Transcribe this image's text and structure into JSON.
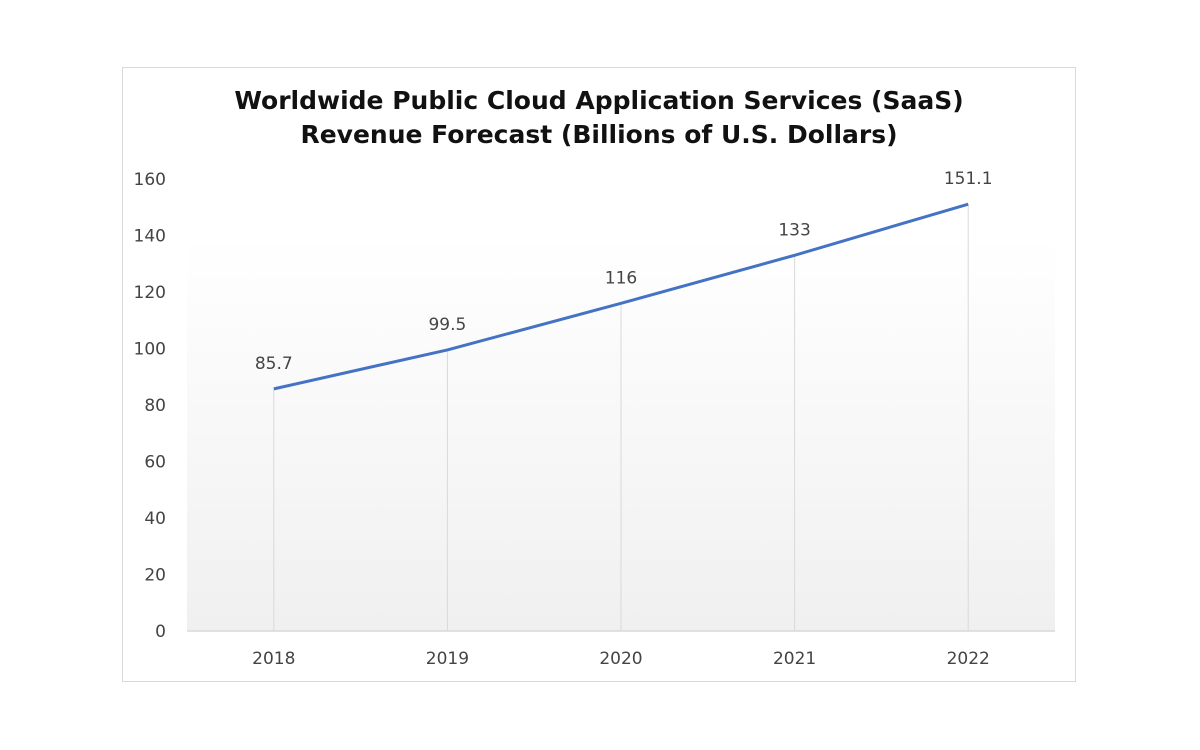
{
  "chart_data": {
    "type": "line",
    "title_lines": [
      "Worldwide Public Cloud Application Services (SaaS)",
      "Revenue Forecast (Billions of U.S. Dollars)"
    ],
    "categories": [
      "2018",
      "2019",
      "2020",
      "2021",
      "2022"
    ],
    "values": [
      85.7,
      99.5,
      116,
      133,
      151.1
    ],
    "data_labels": [
      "85.7",
      "99.5",
      "116",
      "133",
      "151.1"
    ],
    "y_ticks": [
      0,
      20,
      40,
      60,
      80,
      100,
      120,
      140,
      160
    ],
    "ylim": [
      0,
      160
    ],
    "xlabel": "",
    "ylabel": "",
    "grid": false,
    "drop_lines": true,
    "legend": "none",
    "colors": {
      "line": "#4472c4",
      "drop_line": "#d9d9d9",
      "axis": "#d9d9d9",
      "background_gradient": [
        "#ffffff",
        "#f0f0f0"
      ]
    }
  }
}
